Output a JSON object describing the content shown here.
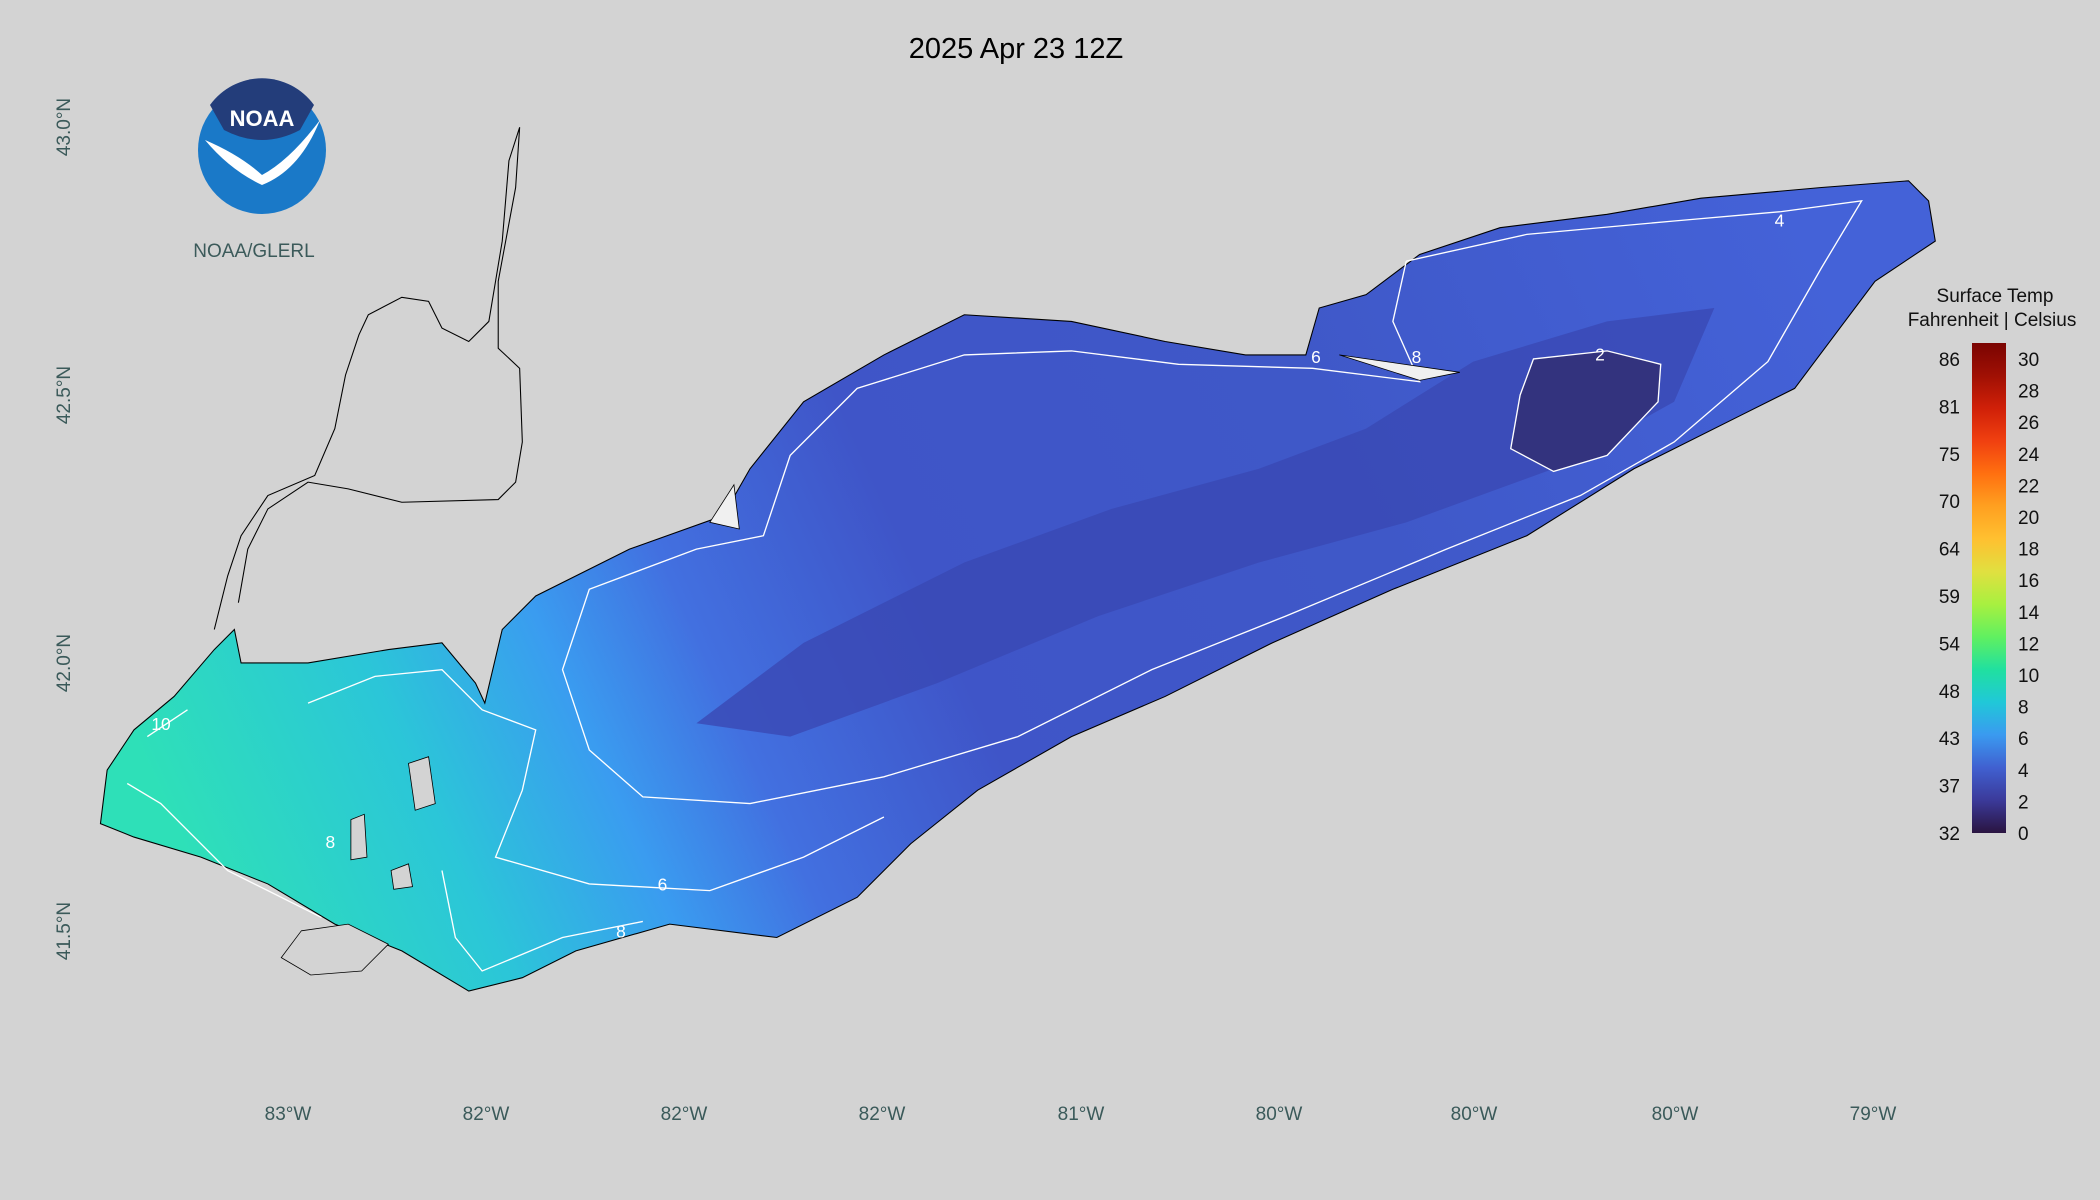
{
  "title": "2025 Apr 23 12Z",
  "logo": {
    "text": "NOAA",
    "caption": "NOAA/GLERL"
  },
  "latitude_labels": [
    "43.0°N",
    "42.5°N",
    "42.0°N",
    "41.5°N"
  ],
  "longitude_labels": [
    "83°W",
    "82°W",
    "82°W",
    "82°W",
    "81°W",
    "80°W",
    "80°W",
    "80°W",
    "79°W"
  ],
  "legend": {
    "title": "Surface Temp",
    "subtitle": "Fahrenheit | Celsius",
    "fahrenheit": [
      86,
      81,
      75,
      70,
      64,
      59,
      54,
      48,
      43,
      37,
      32
    ],
    "celsius": [
      30,
      28,
      26,
      24,
      22,
      20,
      18,
      16,
      14,
      12,
      10,
      8,
      6,
      4,
      2,
      0
    ]
  },
  "contour_labels": [
    "4",
    "2",
    "6",
    "8",
    "10",
    "8",
    "6",
    "8"
  ]
}
